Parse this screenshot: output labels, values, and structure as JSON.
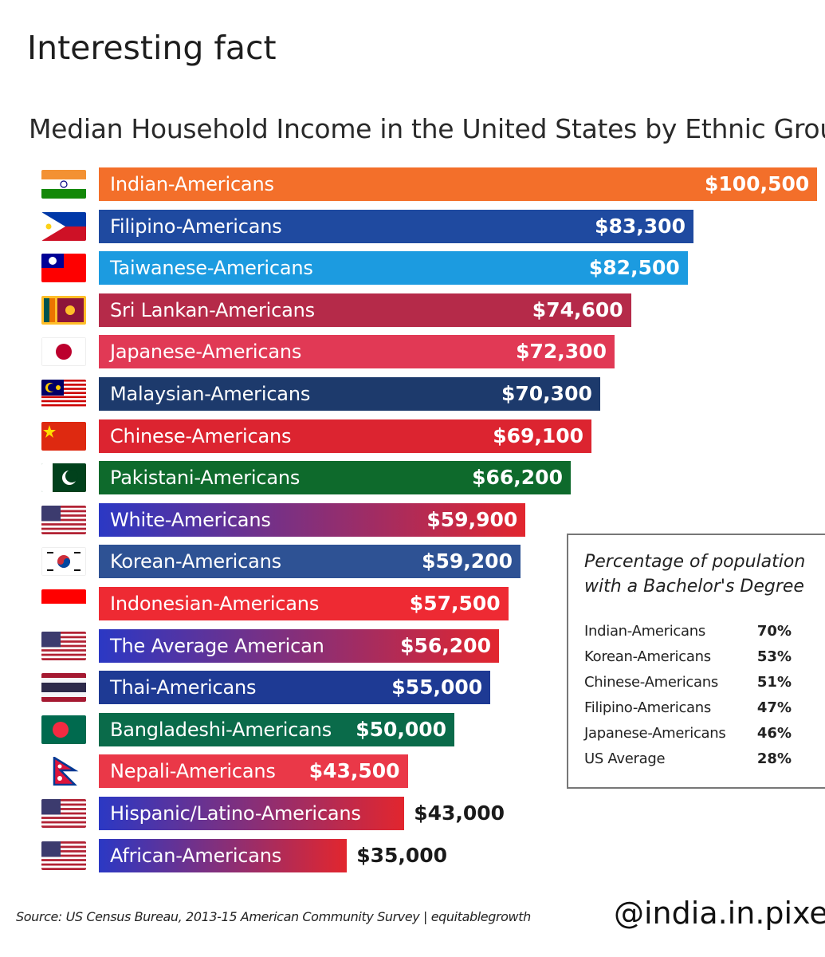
{
  "post": {
    "caption": "Interesting fact"
  },
  "chart_data": {
    "type": "bar",
    "title": "Median Household Income in the United States by Ethnic Group",
    "categories": [
      "Indian-Americans",
      "Filipino-Americans",
      "Taiwanese-Americans",
      "Sri Lankan-Americans",
      "Japanese-Americans",
      "Malaysian-Americans",
      "Chinese-Americans",
      "Pakistani-Americans",
      "White-Americans",
      "Korean-Americans",
      "Indonesian-Americans",
      "The Average American",
      "Thai-Americans",
      "Bangladeshi-Americans",
      "Nepali-Americans",
      "Hispanic/Latino-Americans",
      "African-Americans"
    ],
    "values": [
      100500,
      83300,
      82500,
      74600,
      72300,
      70300,
      69100,
      66200,
      59900,
      59200,
      57500,
      56200,
      55000,
      50000,
      43500,
      43000,
      35000
    ],
    "value_labels": [
      "$100,500",
      "$83,300",
      "$82,500",
      "$74,600",
      "$72,300",
      "$70,300",
      "$69,100",
      "$66,200",
      "$59,900",
      "$59,200",
      "$57,500",
      "$56,200",
      "$55,000",
      "$50,000",
      "$43,500",
      "$43,000",
      "$35,000"
    ],
    "flags": [
      "india-flag-icon",
      "philippines-flag-icon",
      "taiwan-flag-icon",
      "sri-lanka-flag-icon",
      "japan-flag-icon",
      "malaysia-flag-icon",
      "china-flag-icon",
      "pakistan-flag-icon",
      "usa-flag-icon",
      "south-korea-flag-icon",
      "indonesia-flag-icon",
      "usa-flag-icon",
      "thailand-flag-icon",
      "bangladesh-flag-icon",
      "nepal-flag-icon",
      "usa-flag-icon",
      "usa-flag-icon"
    ],
    "bar_colors": [
      [
        "#f36f2a",
        "#f36f2a"
      ],
      [
        "#1f4aa0",
        "#1f4aa0"
      ],
      [
        "#1c9be0",
        "#1c9be0"
      ],
      [
        "#b52a49",
        "#b52a49"
      ],
      [
        "#e13955",
        "#e13955"
      ],
      [
        "#1d3a6c",
        "#1d3a6c"
      ],
      [
        "#dc2430",
        "#dc2430"
      ],
      [
        "#0e6a2c",
        "#0e6a2c"
      ],
      [
        "#2b38c4",
        "#e2262e"
      ],
      [
        "#2e5294",
        "#2e5294"
      ],
      [
        "#ee2a33",
        "#ee2a33"
      ],
      [
        "#2b38c4",
        "#e2262e"
      ],
      [
        "#1e3a94",
        "#1e3a94"
      ],
      [
        "#0a6b4a",
        "#0a6b4a"
      ],
      [
        "#ea3848",
        "#ea3848"
      ],
      [
        "#2b38c4",
        "#e2262e"
      ],
      [
        "#2b38c4",
        "#e2262e"
      ]
    ],
    "value_outside_bar": [
      false,
      false,
      false,
      false,
      false,
      false,
      false,
      false,
      false,
      false,
      false,
      false,
      false,
      false,
      false,
      true,
      true
    ],
    "xlim": [
      0,
      100500
    ]
  },
  "legend": {
    "title": "Percentage of population with a Bachelor's Degree",
    "rows": [
      {
        "name": "Indian-Americans",
        "pct": "70%"
      },
      {
        "name": "Korean-Americans",
        "pct": "53%"
      },
      {
        "name": "Chinese-Americans",
        "pct": "51%"
      },
      {
        "name": "Filipino-Americans",
        "pct": "47%"
      },
      {
        "name": "Japanese-Americans",
        "pct": "46%"
      },
      {
        "name": "US Average",
        "pct": "28%"
      }
    ]
  },
  "footer": {
    "source": "Source: US Census Bureau, 2013-15 American Community Survey | equitablegrowth",
    "handle": "@india.in.pixels"
  }
}
